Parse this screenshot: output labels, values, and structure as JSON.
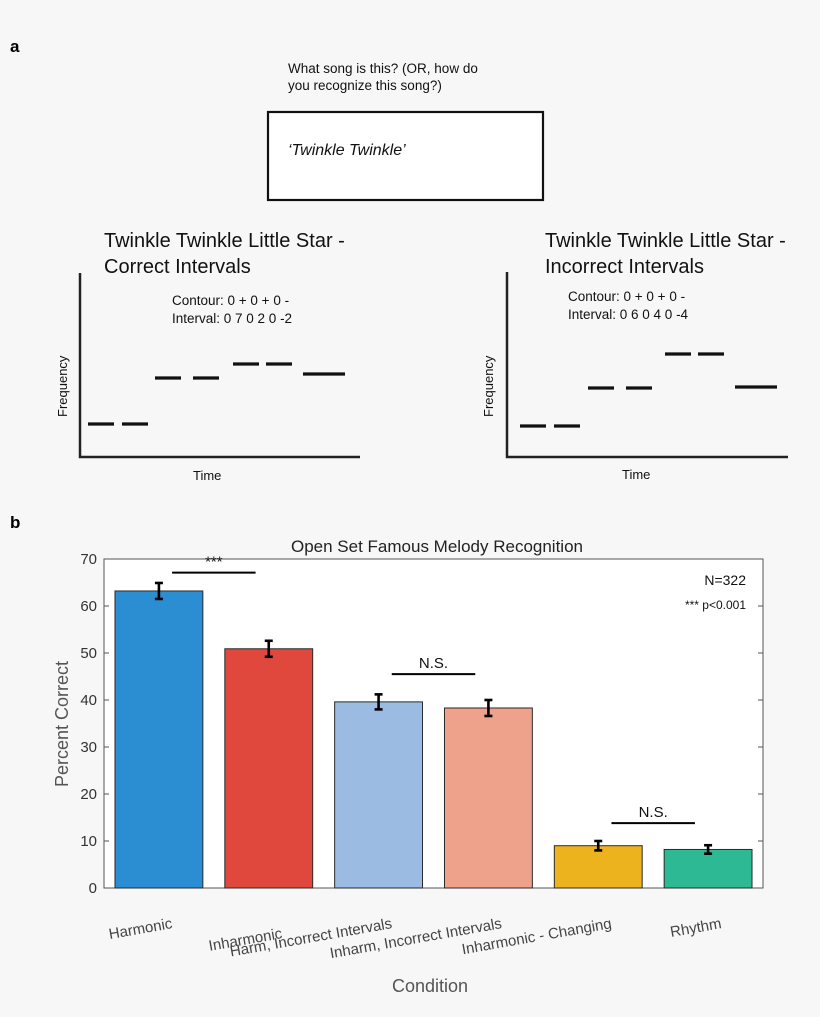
{
  "panel_a": {
    "label": "a",
    "question_line1": "What song is this? (OR, how do",
    "question_line2": "you recognize this song?)",
    "answer": "‘Twinkle Twinkle’",
    "melodies": [
      {
        "title_line1": "Twinkle Twinkle Little Star -",
        "title_line2": "Correct Intervals",
        "contour": "Contour: 0 + 0 + 0 -",
        "interval": "Interval: 0 7 0 2 0 -2",
        "ylabel": "Frequency",
        "xlabel": "Time"
      },
      {
        "title_line1": "Twinkle Twinkle Little Star -",
        "title_line2": "Incorrect Intervals",
        "contour": "Contour: 0 + 0 + 0 -",
        "interval": "Interval: 0 6 0 4 0 -4",
        "ylabel": "Frequency",
        "xlabel": "Time"
      }
    ]
  },
  "panel_b": {
    "label": "b",
    "annotation_n": "N=322",
    "annotation_p": "*** p<0.001"
  },
  "chart_data": {
    "type": "bar",
    "title": "Open Set Famous Melody Recognition",
    "xlabel": "Condition",
    "ylabel": "Percent Correct",
    "ylim": [
      0,
      70
    ],
    "yticks": [
      0,
      10,
      20,
      30,
      40,
      50,
      60,
      70
    ],
    "categories": [
      "Harmonic",
      "Inharmonic",
      "Harm, Incorrect Intervals",
      "Inharm, Incorrect Intervals",
      "Inharmonic - Changing",
      "Rhythm"
    ],
    "values": [
      63.2,
      50.9,
      39.6,
      38.3,
      9.0,
      8.2
    ],
    "error": [
      1.7,
      1.7,
      1.6,
      1.7,
      1.0,
      0.9
    ],
    "colors": [
      "#2b8ed3",
      "#e0483e",
      "#9bbbe3",
      "#eea18b",
      "#edb31f",
      "#2db993"
    ],
    "significance": [
      {
        "from": 0,
        "to": 1,
        "label": "***",
        "y": 67.1
      },
      {
        "from": 2,
        "to": 3,
        "label": "N.S.",
        "y": 45.5
      },
      {
        "from": 4,
        "to": 5,
        "label": "N.S.",
        "y": 13.8
      }
    ],
    "grid": false
  }
}
